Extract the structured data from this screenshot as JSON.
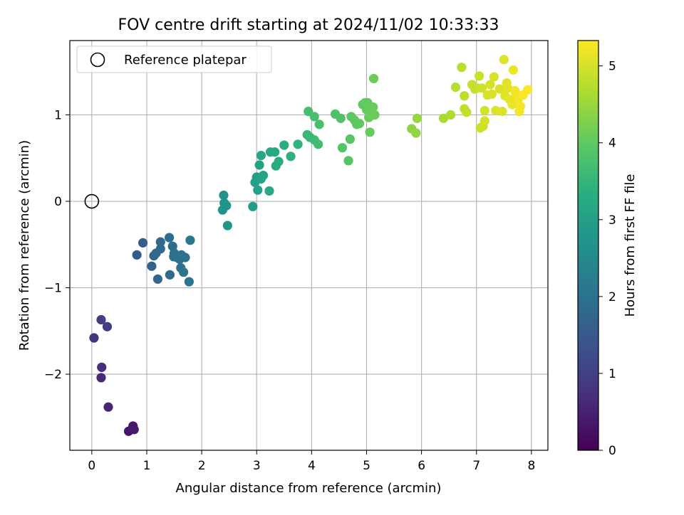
{
  "chart_data": {
    "type": "scatter",
    "title": "FOV centre drift starting at 2024/11/02 10:33:33",
    "xlabel": "Angular distance from reference (arcmin)",
    "ylabel": "Rotation from reference (arcmin)",
    "xlim": [
      -0.4,
      8.3
    ],
    "ylim": [
      -2.88,
      1.86
    ],
    "xticks": [
      0,
      1,
      2,
      3,
      4,
      5,
      6,
      7,
      8
    ],
    "xtick_labels": [
      "0",
      "1",
      "2",
      "3",
      "4",
      "5",
      "6",
      "7",
      "8"
    ],
    "yticks": [
      -2,
      -1,
      0,
      1
    ],
    "ytick_labels": [
      "−2",
      "−1",
      "0",
      "1"
    ],
    "grid": true,
    "legend": {
      "position": "top-left",
      "entries": [
        "Reference platepar"
      ]
    },
    "reference_point": {
      "x": 0,
      "y": 0,
      "label": "Reference platepar"
    },
    "colorbar": {
      "label": "Hours from first FF file",
      "colormap": "viridis",
      "range": [
        0,
        5.33
      ],
      "ticks": [
        0,
        1,
        2,
        3,
        4,
        5
      ],
      "tick_labels": [
        "0",
        "1",
        "2",
        "3",
        "4",
        "5"
      ]
    },
    "points": [
      {
        "x": 0.67,
        "y": -2.66,
        "c": 0.3
      },
      {
        "x": 0.75,
        "y": -2.6,
        "c": 0.35
      },
      {
        "x": 0.77,
        "y": -2.64,
        "c": 0.4
      },
      {
        "x": 0.3,
        "y": -2.38,
        "c": 0.55
      },
      {
        "x": 0.17,
        "y": -2.04,
        "c": 0.65
      },
      {
        "x": 0.18,
        "y": -1.92,
        "c": 0.72
      },
      {
        "x": 0.04,
        "y": -1.58,
        "c": 0.85
      },
      {
        "x": 0.28,
        "y": -1.45,
        "c": 0.95
      },
      {
        "x": 0.17,
        "y": -1.37,
        "c": 1.0
      },
      {
        "x": 0.82,
        "y": -0.62,
        "c": 1.5
      },
      {
        "x": 0.93,
        "y": -0.48,
        "c": 1.55
      },
      {
        "x": 1.09,
        "y": -0.75,
        "c": 1.65
      },
      {
        "x": 1.13,
        "y": -0.63,
        "c": 1.7
      },
      {
        "x": 1.2,
        "y": -0.9,
        "c": 1.75
      },
      {
        "x": 1.17,
        "y": -0.6,
        "c": 1.75
      },
      {
        "x": 1.25,
        "y": -0.55,
        "c": 1.8
      },
      {
        "x": 1.25,
        "y": -0.47,
        "c": 1.8
      },
      {
        "x": 1.42,
        "y": -0.85,
        "c": 1.85
      },
      {
        "x": 1.41,
        "y": -0.42,
        "c": 1.88
      },
      {
        "x": 1.47,
        "y": -0.52,
        "c": 1.9
      },
      {
        "x": 1.5,
        "y": -0.6,
        "c": 1.92
      },
      {
        "x": 1.49,
        "y": -0.64,
        "c": 1.93
      },
      {
        "x": 1.55,
        "y": -0.65,
        "c": 1.95
      },
      {
        "x": 1.6,
        "y": -0.67,
        "c": 1.97
      },
      {
        "x": 1.63,
        "y": -0.62,
        "c": 1.98
      },
      {
        "x": 1.62,
        "y": -0.77,
        "c": 2.0
      },
      {
        "x": 1.67,
        "y": -0.82,
        "c": 2.02
      },
      {
        "x": 1.7,
        "y": -0.65,
        "c": 2.05
      },
      {
        "x": 1.77,
        "y": -0.93,
        "c": 2.1
      },
      {
        "x": 1.79,
        "y": -0.45,
        "c": 2.12
      },
      {
        "x": 2.4,
        "y": 0.07,
        "c": 2.7
      },
      {
        "x": 2.41,
        "y": -0.02,
        "c": 2.72
      },
      {
        "x": 2.38,
        "y": -0.1,
        "c": 2.75
      },
      {
        "x": 2.45,
        "y": -0.05,
        "c": 2.78
      },
      {
        "x": 2.47,
        "y": -0.28,
        "c": 2.8
      },
      {
        "x": 2.93,
        "y": -0.06,
        "c": 2.95
      },
      {
        "x": 2.97,
        "y": 0.22,
        "c": 3.0
      },
      {
        "x": 3.0,
        "y": 0.28,
        "c": 3.02
      },
      {
        "x": 3.02,
        "y": 0.13,
        "c": 3.05
      },
      {
        "x": 3.05,
        "y": 0.42,
        "c": 3.08
      },
      {
        "x": 3.08,
        "y": 0.26,
        "c": 3.1
      },
      {
        "x": 3.12,
        "y": 0.3,
        "c": 3.12
      },
      {
        "x": 3.08,
        "y": 0.53,
        "c": 3.15
      },
      {
        "x": 3.23,
        "y": 0.12,
        "c": 3.17
      },
      {
        "x": 3.25,
        "y": 0.57,
        "c": 3.2
      },
      {
        "x": 3.33,
        "y": 0.57,
        "c": 3.22
      },
      {
        "x": 3.35,
        "y": 0.41,
        "c": 3.25
      },
      {
        "x": 3.4,
        "y": 0.46,
        "c": 3.28
      },
      {
        "x": 3.5,
        "y": 0.65,
        "c": 3.32
      },
      {
        "x": 3.62,
        "y": 0.52,
        "c": 3.38
      },
      {
        "x": 3.75,
        "y": 0.66,
        "c": 3.45
      },
      {
        "x": 3.92,
        "y": 0.77,
        "c": 3.55
      },
      {
        "x": 3.97,
        "y": 0.74,
        "c": 3.6
      },
      {
        "x": 4.05,
        "y": 0.71,
        "c": 3.65
      },
      {
        "x": 4.12,
        "y": 0.66,
        "c": 3.7
      },
      {
        "x": 3.94,
        "y": 1.04,
        "c": 3.72
      },
      {
        "x": 4.05,
        "y": 0.98,
        "c": 3.75
      },
      {
        "x": 4.14,
        "y": 0.89,
        "c": 3.78
      },
      {
        "x": 4.43,
        "y": 1.01,
        "c": 3.82
      },
      {
        "x": 4.53,
        "y": 0.96,
        "c": 3.85
      },
      {
        "x": 4.56,
        "y": 0.62,
        "c": 3.88
      },
      {
        "x": 4.67,
        "y": 0.47,
        "c": 3.9
      },
      {
        "x": 4.7,
        "y": 0.72,
        "c": 3.92
      },
      {
        "x": 4.72,
        "y": 0.98,
        "c": 3.95
      },
      {
        "x": 4.78,
        "y": 0.94,
        "c": 3.97
      },
      {
        "x": 4.82,
        "y": 0.89,
        "c": 3.98
      },
      {
        "x": 4.87,
        "y": 0.9,
        "c": 4.0
      },
      {
        "x": 4.93,
        "y": 1.12,
        "c": 4.02
      },
      {
        "x": 4.97,
        "y": 1.14,
        "c": 4.03
      },
      {
        "x": 5.02,
        "y": 1.14,
        "c": 4.05
      },
      {
        "x": 5.0,
        "y": 1.06,
        "c": 4.06
      },
      {
        "x": 5.04,
        "y": 0.97,
        "c": 4.07
      },
      {
        "x": 5.06,
        "y": 0.8,
        "c": 4.08
      },
      {
        "x": 5.08,
        "y": 0.99,
        "c": 4.09
      },
      {
        "x": 5.12,
        "y": 1.09,
        "c": 4.1
      },
      {
        "x": 5.15,
        "y": 1.0,
        "c": 4.11
      },
      {
        "x": 5.13,
        "y": 1.42,
        "c": 4.12
      },
      {
        "x": 5.82,
        "y": 0.84,
        "c": 4.4
      },
      {
        "x": 5.9,
        "y": 0.79,
        "c": 4.45
      },
      {
        "x": 5.92,
        "y": 0.96,
        "c": 4.48
      },
      {
        "x": 6.4,
        "y": 0.96,
        "c": 4.65
      },
      {
        "x": 6.53,
        "y": 1.0,
        "c": 4.7
      },
      {
        "x": 6.62,
        "y": 1.32,
        "c": 4.75
      },
      {
        "x": 6.73,
        "y": 1.55,
        "c": 4.78
      },
      {
        "x": 6.78,
        "y": 1.22,
        "c": 4.8
      },
      {
        "x": 6.78,
        "y": 1.07,
        "c": 4.82
      },
      {
        "x": 6.82,
        "y": 1.03,
        "c": 4.84
      },
      {
        "x": 6.92,
        "y": 1.35,
        "c": 4.86
      },
      {
        "x": 6.97,
        "y": 1.3,
        "c": 4.88
      },
      {
        "x": 7.02,
        "y": 1.31,
        "c": 4.9
      },
      {
        "x": 7.05,
        "y": 1.45,
        "c": 4.92
      },
      {
        "x": 7.07,
        "y": 0.85,
        "c": 4.93
      },
      {
        "x": 7.12,
        "y": 0.87,
        "c": 4.95
      },
      {
        "x": 7.1,
        "y": 1.31,
        "c": 4.96
      },
      {
        "x": 7.15,
        "y": 1.05,
        "c": 4.97
      },
      {
        "x": 7.15,
        "y": 0.93,
        "c": 4.98
      },
      {
        "x": 7.2,
        "y": 1.23,
        "c": 5.0
      },
      {
        "x": 7.25,
        "y": 1.35,
        "c": 5.01
      },
      {
        "x": 7.28,
        "y": 1.24,
        "c": 5.02
      },
      {
        "x": 7.32,
        "y": 1.44,
        "c": 5.03
      },
      {
        "x": 7.35,
        "y": 1.05,
        "c": 5.04
      },
      {
        "x": 7.42,
        "y": 1.3,
        "c": 5.05
      },
      {
        "x": 7.47,
        "y": 1.04,
        "c": 5.06
      },
      {
        "x": 7.5,
        "y": 1.64,
        "c": 5.07
      },
      {
        "x": 7.52,
        "y": 1.22,
        "c": 5.08
      },
      {
        "x": 7.55,
        "y": 1.37,
        "c": 5.1
      },
      {
        "x": 7.57,
        "y": 1.31,
        "c": 5.12
      },
      {
        "x": 7.6,
        "y": 1.18,
        "c": 5.14
      },
      {
        "x": 7.65,
        "y": 1.12,
        "c": 5.16
      },
      {
        "x": 7.67,
        "y": 1.52,
        "c": 5.18
      },
      {
        "x": 7.7,
        "y": 1.28,
        "c": 5.2
      },
      {
        "x": 7.72,
        "y": 1.24,
        "c": 5.22
      },
      {
        "x": 7.76,
        "y": 1.18,
        "c": 5.24
      },
      {
        "x": 7.78,
        "y": 1.04,
        "c": 5.26
      },
      {
        "x": 7.8,
        "y": 1.1,
        "c": 5.28
      },
      {
        "x": 7.85,
        "y": 1.23,
        "c": 5.3
      },
      {
        "x": 7.93,
        "y": 1.29,
        "c": 5.33
      }
    ]
  }
}
